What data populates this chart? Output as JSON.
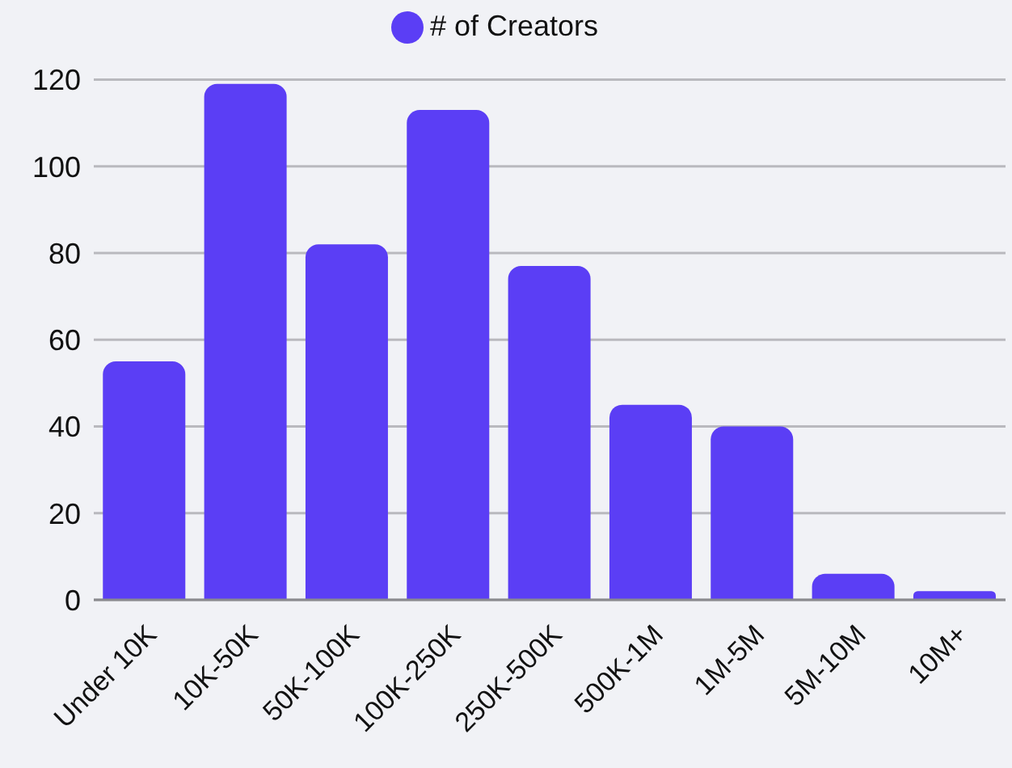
{
  "chart_data": {
    "type": "bar",
    "categories": [
      "Under 10K",
      "10K-50K",
      "50K-100K",
      "100K-250K",
      "250K-500K",
      "500K-1M",
      "1M-5M",
      "5M-10M",
      "10M+"
    ],
    "series": [
      {
        "name": "# of Creators",
        "color": "#5b3ef5",
        "values": [
          55,
          119,
          82,
          113,
          77,
          45,
          40,
          6,
          2
        ]
      }
    ],
    "ylim": [
      0,
      120
    ],
    "yticks": [
      0,
      20,
      40,
      60,
      80,
      100,
      120
    ],
    "grid": "y",
    "legend": "top"
  }
}
